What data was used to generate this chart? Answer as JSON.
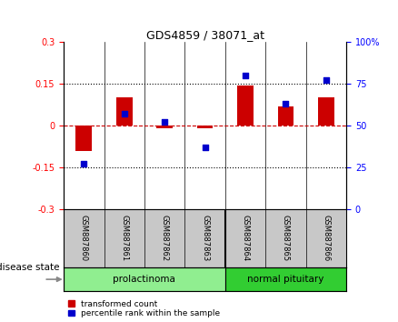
{
  "title": "GDS4859 / 38071_at",
  "samples": [
    "GSM887860",
    "GSM887861",
    "GSM887862",
    "GSM887863",
    "GSM887864",
    "GSM887865",
    "GSM887866"
  ],
  "transformed_count": [
    -0.09,
    0.1,
    -0.01,
    -0.01,
    0.145,
    0.07,
    0.1
  ],
  "percentile_rank": [
    27,
    57,
    52,
    37,
    80,
    63,
    77
  ],
  "disease_groups": [
    {
      "label": "prolactinoma",
      "indices": [
        0,
        1,
        2,
        3
      ],
      "color": "#90ee90"
    },
    {
      "label": "normal pituitary",
      "indices": [
        4,
        5,
        6
      ],
      "color": "#32cd32"
    }
  ],
  "ylim_left": [
    -0.3,
    0.3
  ],
  "ylim_right": [
    0,
    100
  ],
  "yticks_left": [
    -0.3,
    -0.15,
    0,
    0.15,
    0.3
  ],
  "yticks_right": [
    0,
    25,
    50,
    75,
    100
  ],
  "hlines": [
    0.15,
    -0.15
  ],
  "bar_color": "#cc0000",
  "dot_color": "#0000cc",
  "zero_line_color": "#cc0000",
  "label_transformed": "transformed count",
  "label_percentile": "percentile rank within the sample",
  "disease_state_label": "disease state",
  "sample_label_bg": "#c8c8c8",
  "prolactinoma_light": "#b2f0b2",
  "normal_pituitary_dark": "#32cd32"
}
